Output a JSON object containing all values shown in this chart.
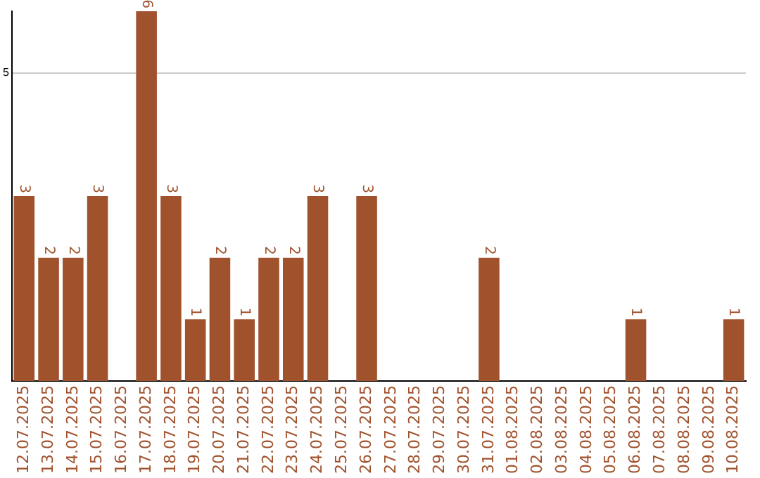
{
  "chart_data": {
    "type": "bar",
    "categories": [
      "12.07.2025",
      "13.07.2025",
      "14.07.2025",
      "15.07.2025",
      "16.07.2025",
      "17.07.2025",
      "18.07.2025",
      "19.07.2025",
      "20.07.2025",
      "21.07.2025",
      "22.07.2025",
      "23.07.2025",
      "24.07.2025",
      "25.07.2025",
      "26.07.2025",
      "27.07.2025",
      "28.07.2025",
      "29.07.2025",
      "30.07.2025",
      "31.07.2025",
      "01.08.2025",
      "02.08.2025",
      "03.08.2025",
      "04.08.2025",
      "05.08.2025",
      "06.08.2025",
      "07.08.2025",
      "08.08.2025",
      "09.08.2025",
      "10.08.2025"
    ],
    "values": [
      3,
      2,
      2,
      3,
      0,
      6,
      3,
      1,
      2,
      1,
      2,
      2,
      3,
      0,
      3,
      0,
      0,
      0,
      0,
      2,
      0,
      0,
      0,
      0,
      0,
      1,
      0,
      0,
      0,
      1
    ],
    "value_labels": [
      "3",
      "2",
      "2",
      "3",
      null,
      "6",
      "3",
      "1",
      "2",
      "1",
      "2",
      "2",
      "3",
      null,
      "3",
      null,
      null,
      null,
      null,
      "2",
      null,
      null,
      null,
      null,
      null,
      "1",
      null,
      null,
      null,
      "1"
    ],
    "color": "#a0522d",
    "ylim": [
      0,
      6
    ],
    "yticks": [
      5
    ],
    "grid": "y",
    "legend": false
  }
}
